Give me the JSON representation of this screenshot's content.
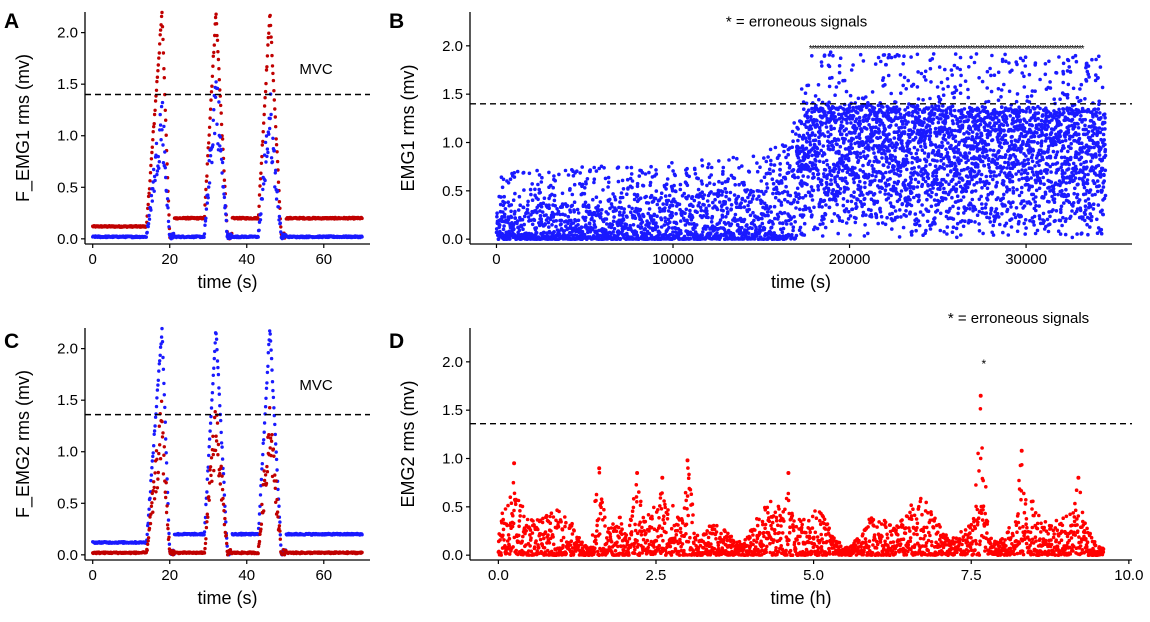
{
  "colors": {
    "red": "#c00000",
    "blue": "#1a1aff",
    "bright_red": "#ff0000",
    "dash": "#000000"
  },
  "chart_data": [
    {
      "panel": "A",
      "type": "scatter",
      "xlabel": "time (s)",
      "ylabel": "F_EMG1 rms (mv)",
      "xlim": [
        -2,
        72
      ],
      "ylim": [
        -0.05,
        2.2
      ],
      "xticks": [
        0,
        20,
        40,
        60
      ],
      "yticks": [
        0.0,
        0.5,
        1.0,
        1.5,
        2.0
      ],
      "xtick_labels": [
        "0",
        "20",
        "40",
        "60"
      ],
      "ytick_labels": [
        "0.0",
        "0.5",
        "1.0",
        "1.5",
        "2.0"
      ],
      "hline": 1.4,
      "annotations": [
        {
          "text": "MVC",
          "x": 58,
          "y": 1.6
        }
      ],
      "contractions": [
        {
          "start": 14,
          "peak": 18,
          "end": 20,
          "peak_dominant": 2.2,
          "peak_other": 1.2,
          "rest_gap_end": 28
        },
        {
          "start": 29,
          "peak": 32,
          "end": 35,
          "peak_dominant": 2.2,
          "peak_other": 1.45,
          "rest_gap_end": 43
        },
        {
          "start": 43,
          "peak": 46,
          "end": 49,
          "peak_dominant": 2.2,
          "peak_other": 1.2,
          "rest_gap_end": 52
        }
      ],
      "series": [
        {
          "color": "#c00000",
          "role": "dominant",
          "baseline_pre": 0.12,
          "baseline_mid": 0.2,
          "baseline_post": 0.2
        },
        {
          "color": "#1a1aff",
          "role": "secondary",
          "baseline_pre": 0.02,
          "baseline_mid": 0.02,
          "baseline_post": 0.02
        }
      ]
    },
    {
      "panel": "B",
      "type": "scatter",
      "xlabel": "time (s)",
      "ylabel": "EMG1 rms (mv)",
      "xlim": [
        -1500,
        36000
      ],
      "ylim": [
        -0.05,
        2.35
      ],
      "xticks": [
        0,
        10000,
        20000,
        30000
      ],
      "yticks": [
        0.0,
        0.5,
        1.0,
        1.5,
        2.0
      ],
      "xtick_labels": [
        "0",
        "10000",
        "20000",
        "30000"
      ],
      "ytick_labels": [
        "0.0",
        "0.5",
        "1.0",
        "1.5",
        "2.0"
      ],
      "hline": 1.4,
      "annotations": [
        {
          "text": "* = erroneous signals",
          "x": 17000,
          "y": 2.2
        }
      ],
      "erroneous_marks": {
        "y": 2.0,
        "x_start": 17800,
        "x_end": 33200
      },
      "series": [
        {
          "color": "#1a1aff",
          "x_range": [
            0,
            34500
          ],
          "envelope": [
            {
              "x": 0,
              "y": 0.35
            },
            {
              "x": 5000,
              "y": 0.4
            },
            {
              "x": 10000,
              "y": 0.45
            },
            {
              "x": 15000,
              "y": 0.55
            },
            {
              "x": 16500,
              "y": 0.7
            },
            {
              "x": 17000,
              "y": 1.2
            },
            {
              "x": 18000,
              "y": 1.4
            },
            {
              "x": 34500,
              "y": 1.35
            }
          ]
        }
      ]
    },
    {
      "panel": "C",
      "type": "scatter",
      "xlabel": "time (s)",
      "ylabel": "F_EMG2 rms (mv)",
      "xlim": [
        -2,
        72
      ],
      "ylim": [
        -0.05,
        2.2
      ],
      "xticks": [
        0,
        20,
        40,
        60
      ],
      "yticks": [
        0.0,
        0.5,
        1.0,
        1.5,
        2.0
      ],
      "xtick_labels": [
        "0",
        "20",
        "40",
        "60"
      ],
      "ytick_labels": [
        "0.0",
        "0.5",
        "1.0",
        "1.5",
        "2.0"
      ],
      "hline": 1.36,
      "annotations": [
        {
          "text": "MVC",
          "x": 58,
          "y": 1.6
        }
      ],
      "contractions": [
        {
          "start": 14,
          "peak": 18,
          "end": 20,
          "peak_dominant": 2.2,
          "peak_other": 1.25,
          "rest_gap_end": 28
        },
        {
          "start": 29,
          "peak": 32,
          "end": 35,
          "peak_dominant": 2.2,
          "peak_other": 1.3,
          "rest_gap_end": 43
        },
        {
          "start": 43,
          "peak": 46,
          "end": 49,
          "peak_dominant": 2.2,
          "peak_other": 1.25,
          "rest_gap_end": 52
        }
      ],
      "series": [
        {
          "color": "#1a1aff",
          "role": "dominant",
          "baseline_pre": 0.12,
          "baseline_mid": 0.2,
          "baseline_post": 0.2
        },
        {
          "color": "#c00000",
          "role": "secondary",
          "baseline_pre": 0.02,
          "baseline_mid": 0.02,
          "baseline_post": 0.02
        }
      ]
    },
    {
      "panel": "D",
      "type": "scatter",
      "xlabel": "time (h)",
      "ylabel": "EMG2 rms (mv)",
      "xlim": [
        -0.45,
        10.05
      ],
      "ylim": [
        -0.05,
        2.35
      ],
      "xticks": [
        0.0,
        2.5,
        5.0,
        7.5,
        10.0
      ],
      "yticks": [
        0.0,
        0.5,
        1.0,
        1.5,
        2.0
      ],
      "xtick_labels": [
        "0.0",
        "2.5",
        "5.0",
        "7.5",
        "10.0"
      ],
      "ytick_labels": [
        "0.0",
        "0.5",
        "1.0",
        "1.5",
        "2.0"
      ],
      "hline": 1.36,
      "annotations": [
        {
          "text": "* = erroneous signals",
          "x": 8.25,
          "y": 2.4
        }
      ],
      "erroneous_marks": {
        "y": 2.0,
        "x_start": 7.7,
        "x_end": 7.7
      },
      "series": [
        {
          "color": "#ff0000",
          "x_range": [
            0,
            9.6
          ],
          "bursts": [
            {
              "x": 0.25,
              "y": 0.95
            },
            {
              "x": 1.6,
              "y": 0.9
            },
            {
              "x": 2.2,
              "y": 0.85
            },
            {
              "x": 2.6,
              "y": 0.8
            },
            {
              "x": 3.0,
              "y": 0.98
            },
            {
              "x": 4.6,
              "y": 0.85
            },
            {
              "x": 7.65,
              "y": 1.65
            },
            {
              "x": 8.3,
              "y": 1.08
            },
            {
              "x": 9.2,
              "y": 0.8
            }
          ]
        }
      ]
    }
  ]
}
